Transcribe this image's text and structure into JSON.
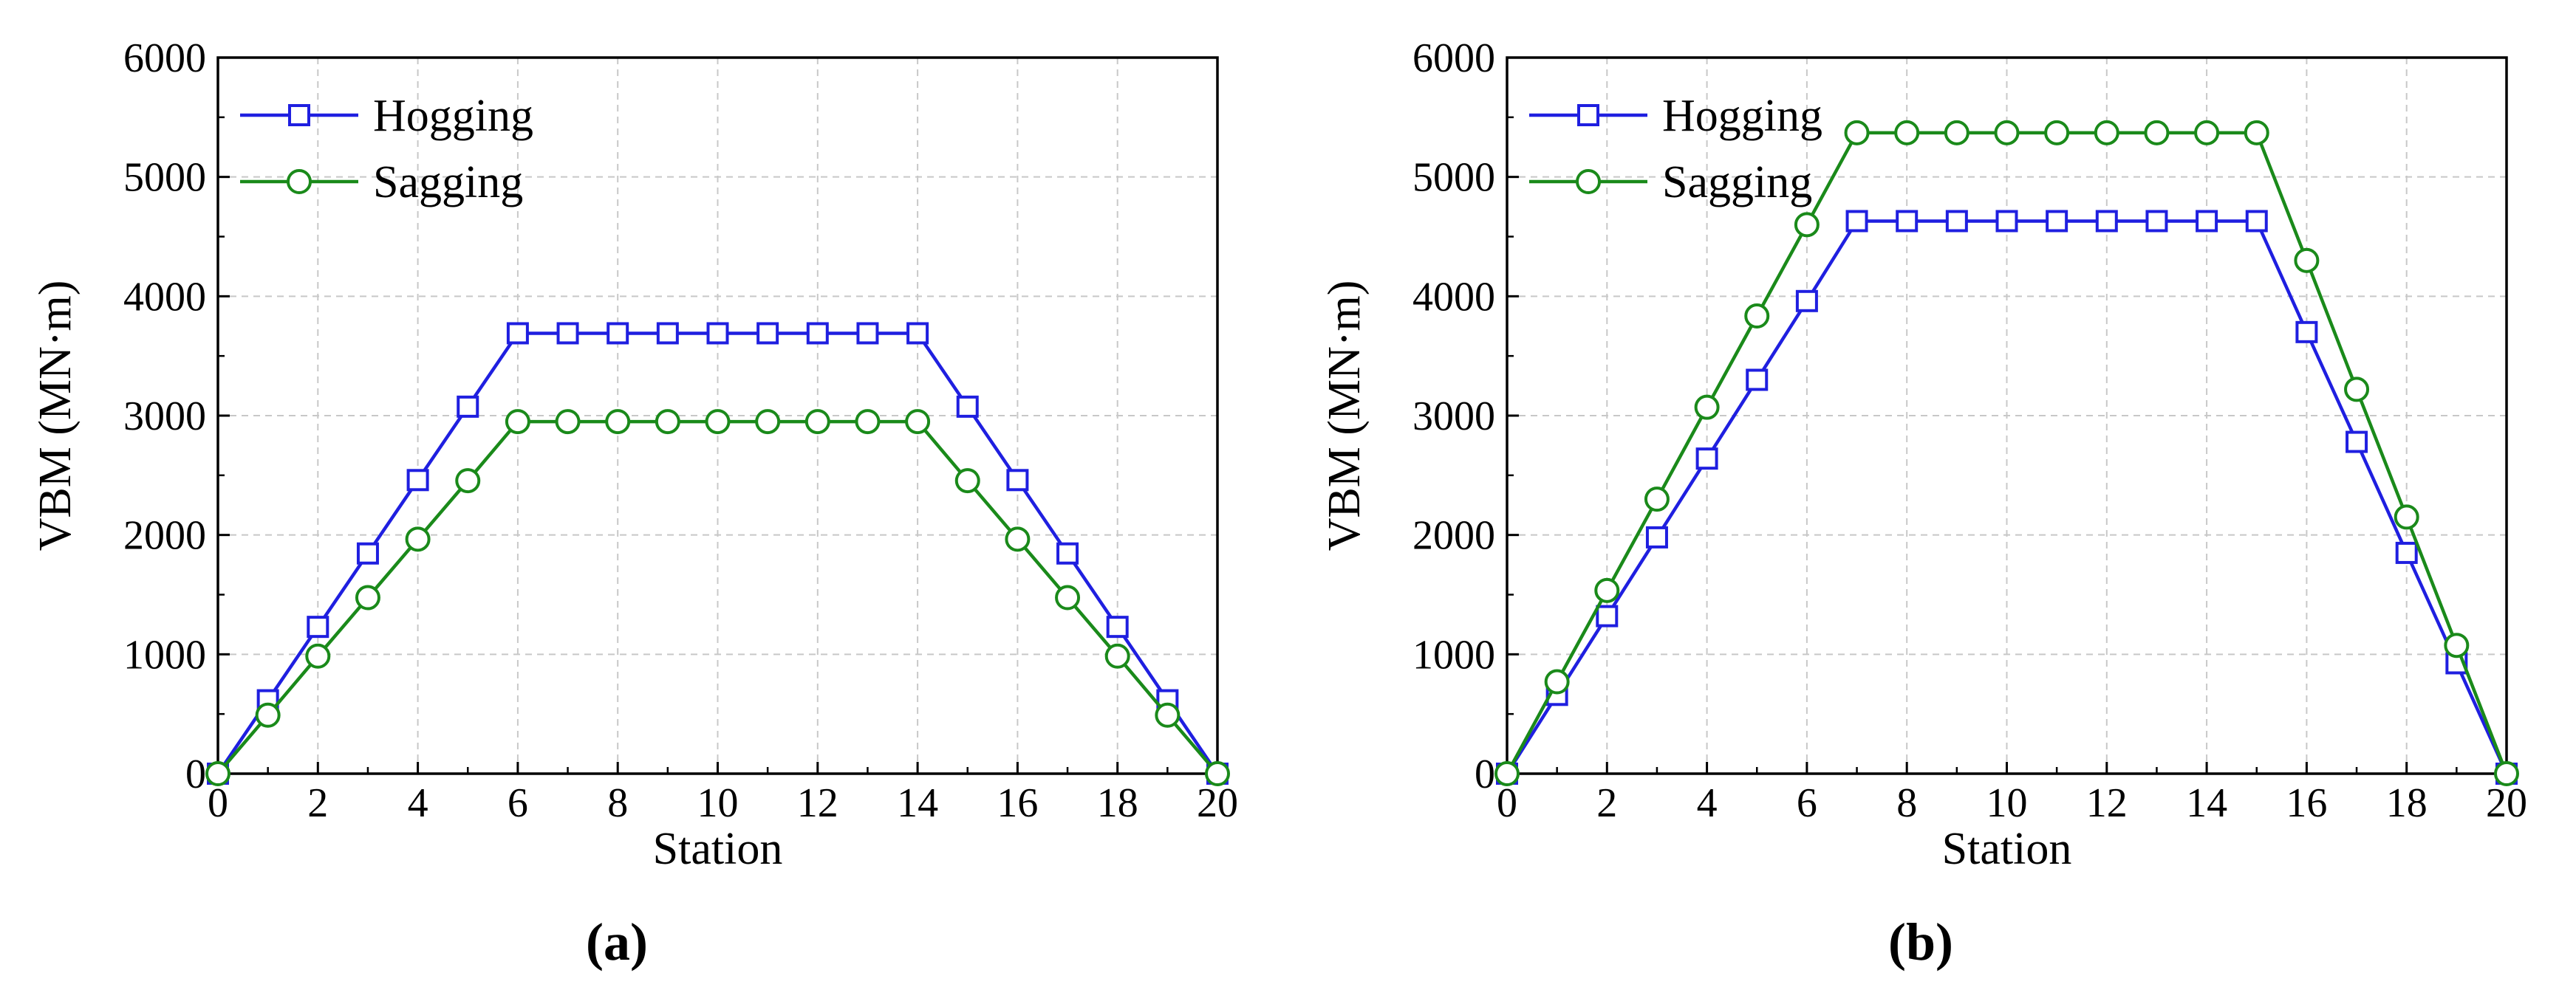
{
  "chart_data": [
    {
      "type": "line",
      "panel": "a",
      "caption": "(a)",
      "xlabel": "Station",
      "ylabel": "VBM (MN·m)",
      "xlim": [
        0,
        20
      ],
      "ylim": [
        0,
        6000
      ],
      "xticks": [
        0,
        2,
        4,
        6,
        8,
        10,
        12,
        14,
        16,
        18,
        20
      ],
      "yticks": [
        0,
        1000,
        2000,
        3000,
        4000,
        5000,
        6000
      ],
      "grid": true,
      "legend": "top-left",
      "x": [
        0,
        1,
        2,
        3,
        4,
        5,
        6,
        7,
        8,
        9,
        10,
        11,
        12,
        13,
        14,
        15,
        16,
        17,
        18,
        19,
        20
      ],
      "series": [
        {
          "name": "Hogging",
          "color": "#1f1fe0",
          "marker": "square",
          "values": [
            0,
            615,
            1230,
            1845,
            2460,
            3075,
            3690,
            3690,
            3690,
            3690,
            3690,
            3690,
            3690,
            3690,
            3690,
            3075,
            2460,
            1845,
            1230,
            615,
            0
          ]
        },
        {
          "name": "Sagging",
          "color": "#1a8a1a",
          "marker": "circle",
          "values": [
            0,
            490,
            985,
            1475,
            1965,
            2455,
            2950,
            2950,
            2950,
            2950,
            2950,
            2950,
            2950,
            2950,
            2950,
            2455,
            1965,
            1475,
            985,
            490,
            0
          ]
        }
      ]
    },
    {
      "type": "line",
      "panel": "b",
      "caption": "(b)",
      "xlabel": "Station",
      "ylabel": "VBM (MN·m)",
      "xlim": [
        0,
        20
      ],
      "ylim": [
        0,
        6000
      ],
      "xticks": [
        0,
        2,
        4,
        6,
        8,
        10,
        12,
        14,
        16,
        18,
        20
      ],
      "yticks": [
        0,
        1000,
        2000,
        3000,
        4000,
        5000,
        6000
      ],
      "grid": true,
      "legend": "top-left",
      "x": [
        0,
        1,
        2,
        3,
        4,
        5,
        6,
        7,
        8,
        9,
        10,
        11,
        12,
        13,
        14,
        15,
        16,
        17,
        18,
        19,
        20
      ],
      "series": [
        {
          "name": "Hogging",
          "color": "#1f1fe0",
          "marker": "square",
          "values": [
            0,
            660,
            1320,
            1980,
            2640,
            3300,
            3960,
            4630,
            4630,
            4630,
            4630,
            4630,
            4630,
            4630,
            4630,
            4630,
            3700,
            2780,
            1850,
            925,
            0
          ]
        },
        {
          "name": "Sagging",
          "color": "#1a8a1a",
          "marker": "circle",
          "values": [
            0,
            770,
            1535,
            2300,
            3070,
            3835,
            4600,
            5370,
            5370,
            5370,
            5370,
            5370,
            5370,
            5370,
            5370,
            5370,
            4300,
            3220,
            2150,
            1075,
            0
          ]
        }
      ]
    }
  ]
}
